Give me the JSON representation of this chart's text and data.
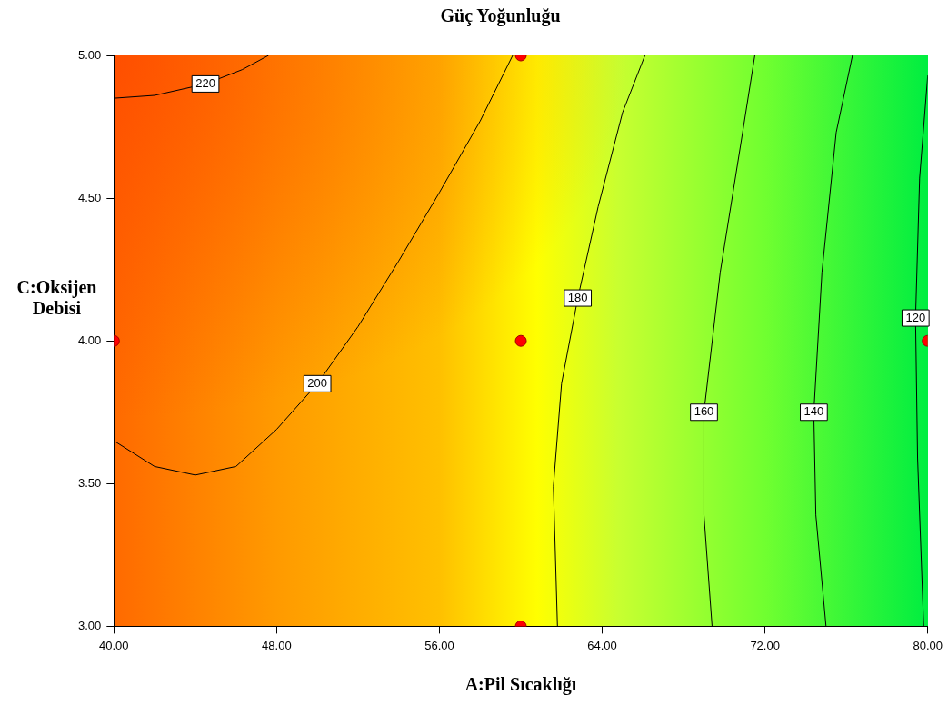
{
  "chart_data": {
    "type": "line",
    "title": "Güç Yoğunluğu",
    "xlabel": "A:Pil Sıcaklığı",
    "ylabel": "C:Oksijen Debisi",
    "xlim": [
      40,
      80
    ],
    "ylim": [
      3,
      5
    ],
    "xticks": [
      {
        "value": 40,
        "label": "40.00"
      },
      {
        "value": 48,
        "label": "48.00"
      },
      {
        "value": 56,
        "label": "56.00"
      },
      {
        "value": 64,
        "label": "64.00"
      },
      {
        "value": 72,
        "label": "72.00"
      },
      {
        "value": 80,
        "label": "80.00"
      }
    ],
    "yticks": [
      {
        "value": 3,
        "label": "3.00"
      },
      {
        "value": 3.5,
        "label": "3.50"
      },
      {
        "value": 4,
        "label": "4.00"
      },
      {
        "value": 4.5,
        "label": "4.50"
      },
      {
        "value": 5,
        "label": "5.00"
      }
    ],
    "grid": false,
    "legend": false,
    "marker": "none",
    "line_style": "solid",
    "series": [
      {
        "name": "220",
        "color": "#000000",
        "x": [
          40,
          42,
          44.5,
          46.3,
          47.6
        ],
        "values": [
          4.85,
          4.86,
          4.9,
          4.95,
          5.0
        ]
      },
      {
        "name": "200",
        "color": "#000000",
        "x": [
          40,
          42,
          44,
          46,
          48,
          50,
          52,
          54,
          56,
          58,
          59.6
        ],
        "values": [
          3.65,
          3.56,
          3.53,
          3.56,
          3.69,
          3.85,
          4.05,
          4.28,
          4.52,
          4.77,
          5.0
        ]
      },
      {
        "name": "180",
        "color": "#000000",
        "x": [
          66.1,
          65,
          63.8,
          62.8,
          62,
          61.6,
          61.8
        ],
        "values": [
          5.0,
          4.8,
          4.47,
          4.15,
          3.85,
          3.49,
          3.0
        ]
      },
      {
        "name": "160",
        "color": "#000000",
        "x": [
          71.5,
          70.9,
          69.8,
          69,
          69,
          69.4
        ],
        "values": [
          5.0,
          4.73,
          4.24,
          3.75,
          3.39,
          3.0
        ]
      },
      {
        "name": "140",
        "color": "#000000",
        "x": [
          76.3,
          75.5,
          74.8,
          74.4,
          74.5,
          75
        ],
        "values": [
          5.0,
          4.73,
          4.24,
          3.75,
          3.39,
          3.0
        ]
      },
      {
        "name": "120",
        "color": "#000000",
        "x": [
          80,
          79.6,
          79.4,
          79.5,
          79.8
        ],
        "values": [
          4.93,
          4.57,
          4.08,
          3.59,
          3.0
        ]
      },
      {
        "type": "scatter",
        "marker": "circle",
        "color": "#ff0000",
        "x": [
          40,
          60,
          60,
          60,
          80
        ],
        "values": [
          4,
          5,
          4,
          3,
          4
        ]
      }
    ]
  }
}
